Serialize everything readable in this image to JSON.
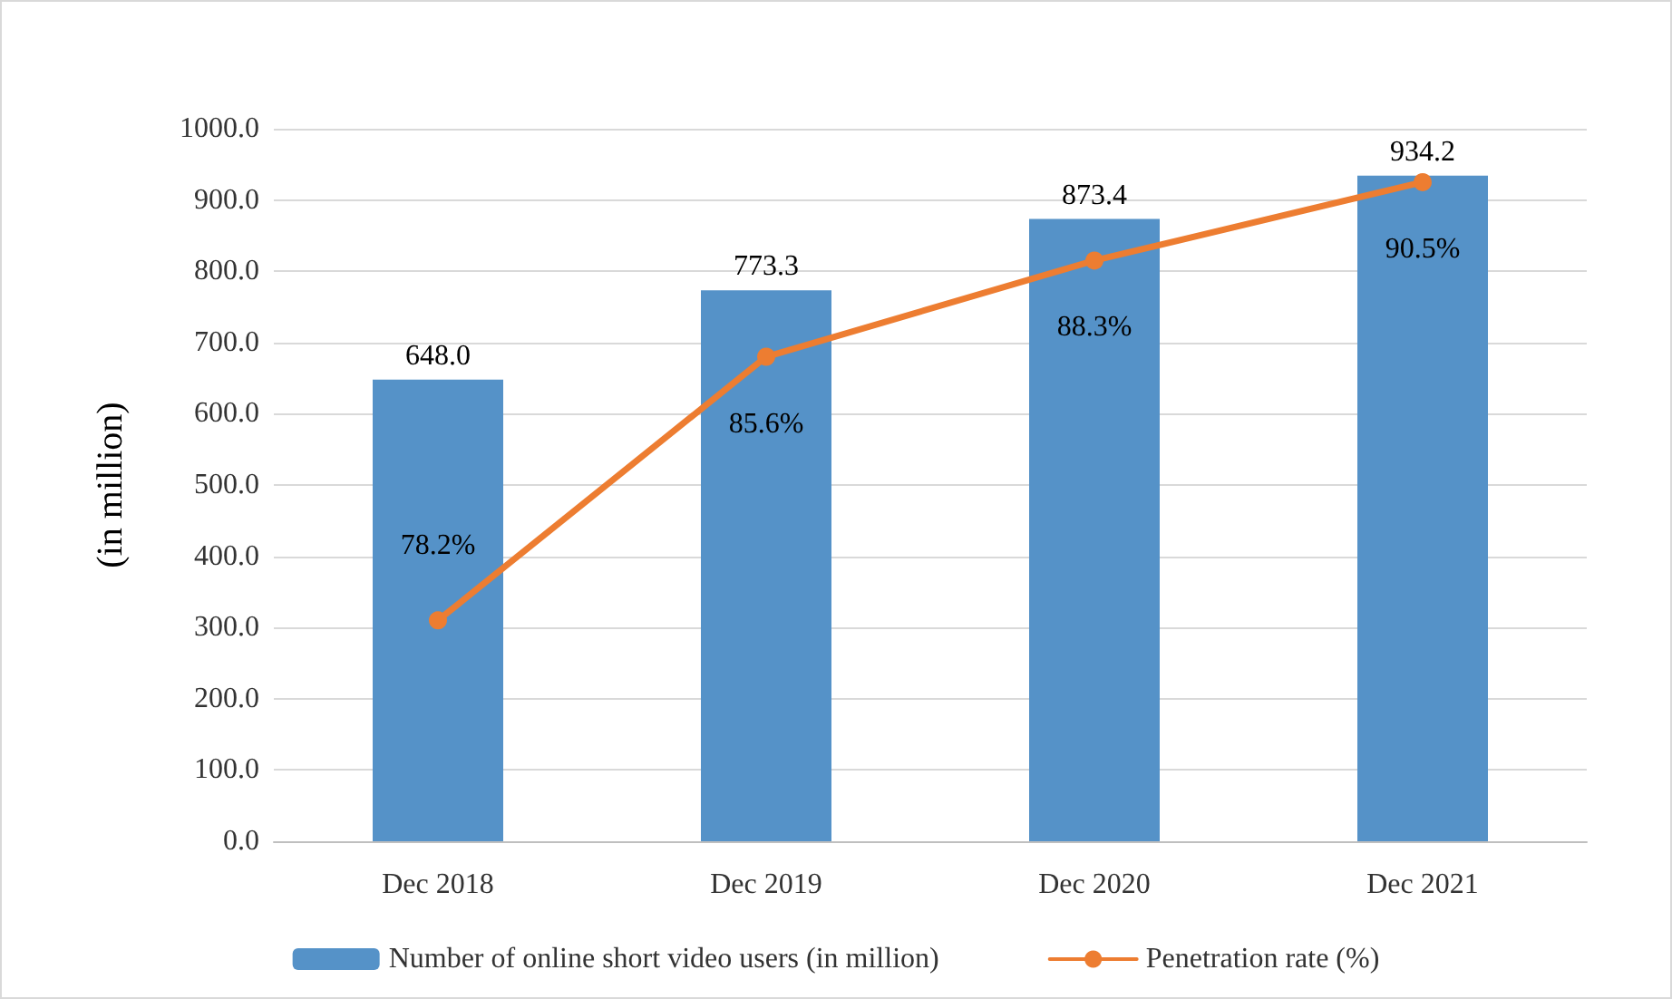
{
  "chart_data": {
    "type": "bar",
    "ylabel": "(in million)",
    "categories": [
      "Dec 2018",
      "Dec 2019",
      "Dec 2020",
      "Dec 2021"
    ],
    "series": [
      {
        "name": "Number of online short video users (in million)",
        "color": "#5592c8",
        "values": [
          648.0,
          773.3,
          873.4,
          934.2
        ],
        "value_labels": [
          "648.0",
          "773.3",
          "873.4",
          "934.2"
        ]
      },
      {
        "name": "Penetration rate (%)",
        "type": "line",
        "axis": "y2",
        "color": "#ed7d31",
        "marker": "circle",
        "values": [
          78.2,
          85.6,
          88.3,
          90.5
        ],
        "value_labels": [
          "78.2%",
          "85.6%",
          "88.3%",
          "90.5%"
        ]
      }
    ],
    "ylim": [
      0,
      1000
    ],
    "yticks": [
      {
        "value": 0,
        "label": "0.0"
      },
      {
        "value": 100,
        "label": "100.0"
      },
      {
        "value": 200,
        "label": "200.0"
      },
      {
        "value": 300,
        "label": "300.0"
      },
      {
        "value": 400,
        "label": "400.0"
      },
      {
        "value": 500,
        "label": "500.0"
      },
      {
        "value": 600,
        "label": "600.0"
      },
      {
        "value": 700,
        "label": "700.0"
      },
      {
        "value": 800,
        "label": "800.0"
      },
      {
        "value": 900,
        "label": "900.0"
      },
      {
        "value": 1000,
        "label": "1000.0"
      }
    ],
    "y2lim": [
      72,
      92
    ],
    "grid": "y",
    "legend": "bottom"
  }
}
